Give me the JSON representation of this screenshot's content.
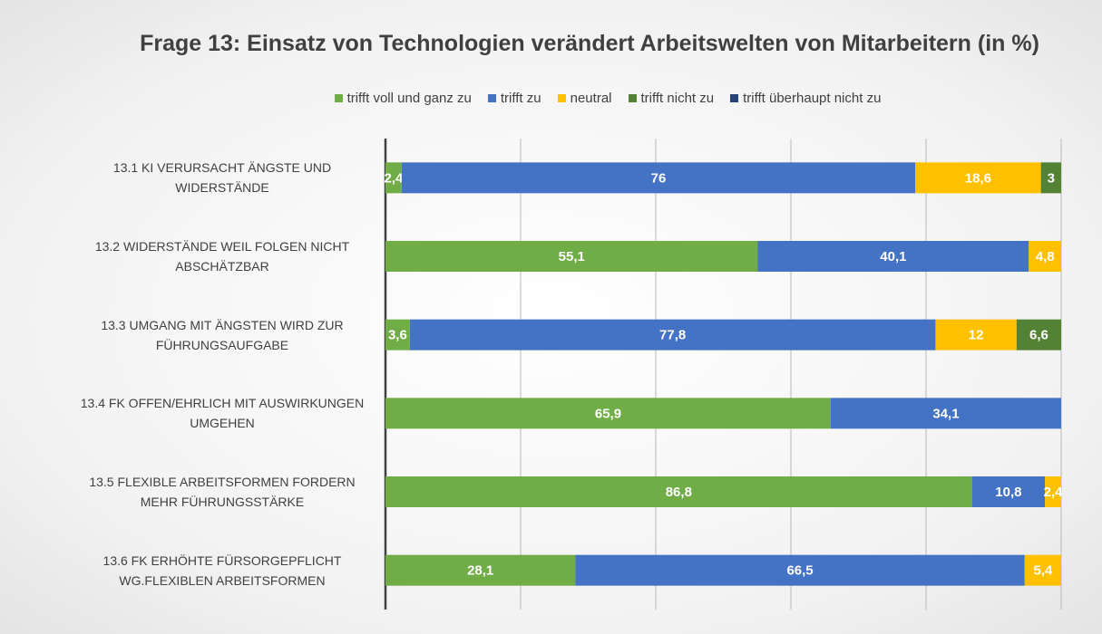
{
  "chart_data": {
    "type": "stacked-bar-horizontal",
    "title": "Frage 13: Einsatz von Technologien verändert Arbeitswelten von Mitarbeitern (in %)",
    "categories": [
      "13.1 KI VERURSACHT ÄNGSTE UND WIDERSTÄNDE",
      "13.2 WIDERSTÄNDE WEIL FOLGEN NICHT ABSCHÄTZBAR",
      "13.3 UMGANG MIT ÄNGSTEN WIRD ZUR FÜHRUNGSAUFGABE",
      "13.4 FK OFFEN/EHRLICH MIT AUSWIRKUNGEN UMGEHEN",
      "13.5 FLEXIBLE ARBEITSFORMEN FORDERN MEHR FÜHRUNGSSTÄRKE",
      "13.6 FK ERHÖHTE FÜRSORGEPFLICHT WG.FLEXIBLEN ARBEITSFORMEN"
    ],
    "series": [
      {
        "name": "trifft voll und ganz zu",
        "color": "#70ad47",
        "values": [
          2.4,
          55.1,
          3.6,
          65.9,
          86.8,
          28.1
        ],
        "value_labels": [
          "2,4",
          "55,1",
          "3,6",
          "65,9",
          "86,8",
          "28,1"
        ]
      },
      {
        "name": "trifft zu",
        "color": "#4472c4",
        "values": [
          76,
          40.1,
          77.8,
          34.1,
          10.8,
          66.5
        ],
        "value_labels": [
          "76",
          "40,1",
          "77,8",
          "34,1",
          "10,8",
          "66,5"
        ]
      },
      {
        "name": "neutral",
        "color": "#ffc000",
        "values": [
          18.6,
          4.8,
          12,
          null,
          2.4,
          5.4
        ],
        "value_labels": [
          "18,6",
          "4,8",
          "12",
          null,
          "2,4",
          "5,4"
        ]
      },
      {
        "name": "trifft nicht zu",
        "color": "#548235",
        "values": [
          3,
          null,
          6.6,
          null,
          null,
          null
        ],
        "value_labels": [
          "3",
          null,
          "6,6",
          null,
          null,
          null
        ]
      },
      {
        "name": "trifft überhaupt nicht zu",
        "color": "#264478",
        "values": [
          null,
          null,
          null,
          null,
          null,
          null
        ],
        "value_labels": [
          null,
          null,
          null,
          null,
          null,
          null
        ]
      }
    ],
    "xlim": [
      0,
      100
    ],
    "xticks": [
      0,
      20,
      40,
      60,
      80,
      100
    ],
    "grid": true,
    "legend": "top"
  }
}
